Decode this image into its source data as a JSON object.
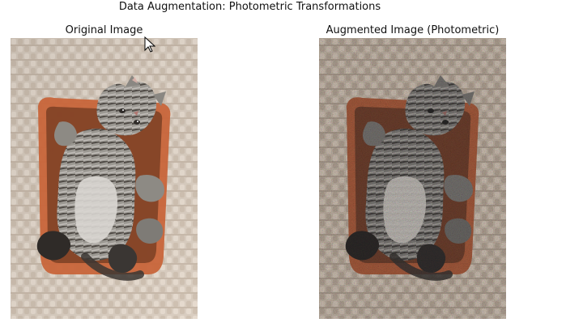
{
  "figure": {
    "title": "Data Augmentation: Photometric Transformations",
    "panels": [
      {
        "title": "Original Image"
      },
      {
        "title": "Augmented Image (Photometric)"
      }
    ]
  },
  "icons": {
    "cursor": "mouse-pointer-icon"
  },
  "colors": {
    "text": "#111111",
    "rug_light": "#d8ccbf",
    "rug_shadow": "#a89584",
    "basket_orange": "#c8653a",
    "cat_gray": "#8a8782",
    "cat_dark": "#2f2b28"
  }
}
